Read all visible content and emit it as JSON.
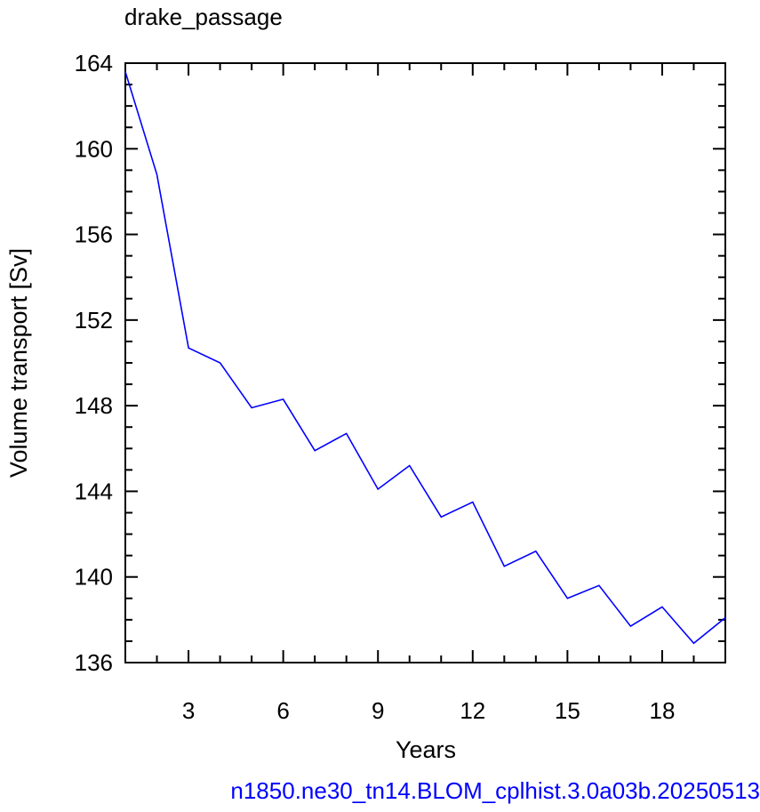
{
  "title": "drake_passage",
  "caption": "n1850.ne30_tn14.BLOM_cplhist.3.0a03b.20250513",
  "colors": {
    "series": "#0000ff",
    "caption": "#0000ff",
    "axes": "#000000",
    "text": "#000000"
  },
  "chart_data": {
    "type": "line",
    "title": "drake_passage",
    "xlabel": "Years",
    "ylabel": "Volume transport [Sv]",
    "xlim": [
      1,
      20
    ],
    "ylim": [
      136,
      164
    ],
    "xticks": [
      3,
      6,
      9,
      12,
      15,
      18
    ],
    "yticks": [
      136,
      140,
      144,
      148,
      152,
      156,
      160,
      164
    ],
    "grid": false,
    "series": [
      {
        "x": [
          1,
          2,
          3,
          4,
          5,
          6,
          7,
          8,
          9,
          10,
          11,
          12,
          13,
          14,
          15,
          16,
          17,
          18,
          19,
          20
        ],
        "y": [
          163.6,
          158.8,
          150.7,
          150.0,
          147.9,
          148.3,
          145.9,
          146.7,
          144.1,
          145.2,
          142.8,
          143.5,
          140.5,
          141.2,
          139.0,
          139.6,
          137.7,
          138.6,
          136.9,
          138.1
        ]
      }
    ]
  }
}
